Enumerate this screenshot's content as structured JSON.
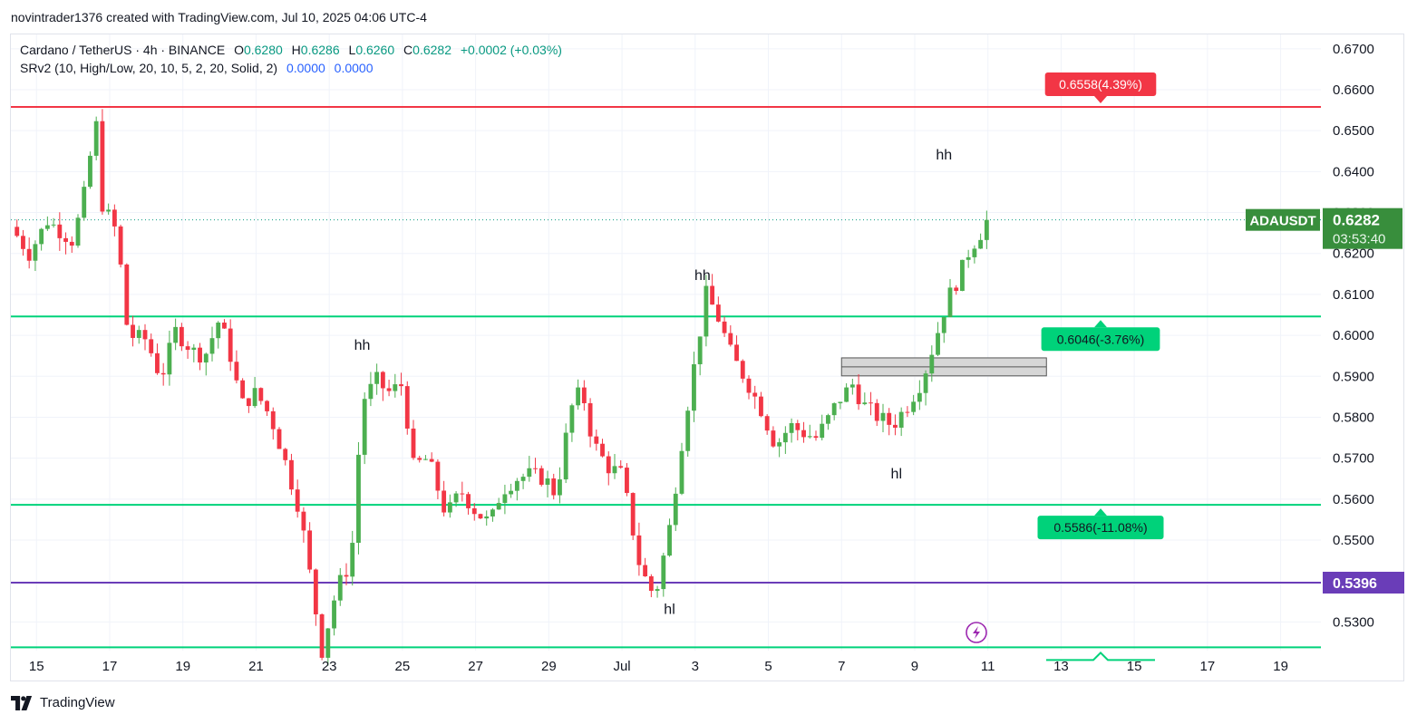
{
  "header": {
    "credit": "novintrader1376 created with TradingView.com, Jul 10, 2025 04:06 UTC-4"
  },
  "legend": {
    "symbol": "Cardano / TetherUS · 4h · BINANCE",
    "o_label": "O",
    "o_value": "0.6280",
    "h_label": "H",
    "h_value": "0.6286",
    "l_label": "L",
    "l_value": "0.6260",
    "c_label": "C",
    "c_value": "0.6282",
    "change": "+0.0002 (+0.03%)",
    "indicator": "SRv2 (10, High/Low, 20, 10, 5, 2, 20, Solid, 2)",
    "ind_val1": "0.0000",
    "ind_val2": "0.0000"
  },
  "footer": {
    "brand": "TradingView"
  },
  "colors": {
    "up": "#089981",
    "up_fill": "#4caf50",
    "down": "#f23645",
    "resistance": "#f23645",
    "support": "#00d27a",
    "purple": "#6a3db8",
    "grid": "#f0f3fa"
  },
  "chart_data": {
    "type": "candlestick",
    "symbol": "ADAUSDT",
    "timeframe": "4h",
    "ylim": [
      0.523,
      0.6735
    ],
    "y_ticks": [
      "0.6700",
      "0.6600",
      "0.6500",
      "0.6400",
      "0.6300",
      "0.6200",
      "0.6100",
      "0.6000",
      "0.5900",
      "0.5800",
      "0.5700",
      "0.5600",
      "0.5500",
      "0.5300"
    ],
    "x_ticks": [
      "15",
      "17",
      "19",
      "21",
      "23",
      "25",
      "27",
      "29",
      "Jul",
      "3",
      "5",
      "7",
      "9",
      "11",
      "13",
      "15",
      "17",
      "19"
    ],
    "x_tick_days": [
      15,
      17,
      19,
      21,
      23,
      25,
      27,
      29,
      31,
      33,
      35,
      37,
      39,
      41,
      43,
      45,
      47,
      49
    ],
    "xlim_days": [
      14.3,
      50.1
    ],
    "last_price": {
      "symbol_label": "ADAUSDT",
      "price": "0.6282",
      "countdown": "03:53:40"
    },
    "horizontal_levels": [
      {
        "price": 0.6558,
        "label": "0.6558(4.39%)",
        "kind": "resistance"
      },
      {
        "price": 0.6046,
        "label": "0.6046(-3.76%)",
        "kind": "support"
      },
      {
        "price": 0.5586,
        "label": "0.5586(-11.08%)",
        "kind": "support"
      },
      {
        "price": 0.5396,
        "label": "0.5396",
        "kind": "purple"
      },
      {
        "price": 0.5238,
        "label": "",
        "kind": "support"
      }
    ],
    "zone": {
      "from_day": 37.0,
      "to_day": 42.6,
      "top": 0.5945,
      "bottom": 0.5901
    },
    "annotations": [
      {
        "text": "hh",
        "day": 23.9,
        "price": 0.5965
      },
      {
        "text": "hh",
        "day": 33.2,
        "price": 0.6135
      },
      {
        "text": "hh",
        "day": 39.8,
        "price": 0.643
      },
      {
        "text": "hl",
        "day": 32.3,
        "price": 0.532
      },
      {
        "text": "hl",
        "day": 38.5,
        "price": 0.565
      }
    ],
    "anchors": [
      [
        14.3,
        0.6265
      ],
      [
        14.8,
        0.62
      ],
      [
        15.3,
        0.628
      ],
      [
        16.0,
        0.623
      ],
      [
        16.4,
        0.638
      ],
      [
        16.6,
        0.655
      ],
      [
        16.8,
        0.632
      ],
      [
        17.2,
        0.625
      ],
      [
        17.5,
        0.6
      ],
      [
        18.0,
        0.599
      ],
      [
        18.4,
        0.5895
      ],
      [
        18.8,
        0.601
      ],
      [
        19.3,
        0.596
      ],
      [
        19.6,
        0.595
      ],
      [
        20.0,
        0.604
      ],
      [
        20.3,
        0.595
      ],
      [
        20.6,
        0.583
      ],
      [
        21.0,
        0.586
      ],
      [
        21.4,
        0.58
      ],
      [
        21.7,
        0.572
      ],
      [
        22.2,
        0.557
      ],
      [
        22.8,
        0.523
      ],
      [
        23.2,
        0.538
      ],
      [
        23.6,
        0.545
      ],
      [
        23.9,
        0.584
      ],
      [
        24.3,
        0.589
      ],
      [
        24.6,
        0.586
      ],
      [
        25.0,
        0.588
      ],
      [
        25.3,
        0.568
      ],
      [
        25.7,
        0.57
      ],
      [
        26.2,
        0.556
      ],
      [
        26.6,
        0.562
      ],
      [
        27.0,
        0.557
      ],
      [
        27.4,
        0.554
      ],
      [
        27.7,
        0.562
      ],
      [
        28.1,
        0.565
      ],
      [
        28.5,
        0.566
      ],
      [
        28.9,
        0.565
      ],
      [
        29.2,
        0.561
      ],
      [
        29.6,
        0.582
      ],
      [
        29.9,
        0.587
      ],
      [
        30.2,
        0.574
      ],
      [
        30.6,
        0.568
      ],
      [
        31.0,
        0.566
      ],
      [
        31.5,
        0.543
      ],
      [
        31.9,
        0.536
      ],
      [
        32.3,
        0.553
      ],
      [
        32.7,
        0.578
      ],
      [
        33.0,
        0.594
      ],
      [
        33.3,
        0.61
      ],
      [
        33.6,
        0.605
      ],
      [
        34.0,
        0.595
      ],
      [
        34.4,
        0.589
      ],
      [
        34.8,
        0.582
      ],
      [
        35.2,
        0.573
      ],
      [
        35.6,
        0.578
      ],
      [
        36.0,
        0.576
      ],
      [
        36.3,
        0.575
      ],
      [
        36.6,
        0.579
      ],
      [
        36.9,
        0.584
      ],
      [
        37.3,
        0.588
      ],
      [
        37.6,
        0.583
      ],
      [
        38.0,
        0.58
      ],
      [
        38.4,
        0.578
      ],
      [
        38.8,
        0.583
      ],
      [
        39.2,
        0.589
      ],
      [
        39.6,
        0.6
      ],
      [
        39.9,
        0.609
      ],
      [
        40.2,
        0.614
      ],
      [
        40.5,
        0.621
      ],
      [
        40.8,
        0.625
      ],
      [
        41.0,
        0.6282
      ]
    ]
  }
}
